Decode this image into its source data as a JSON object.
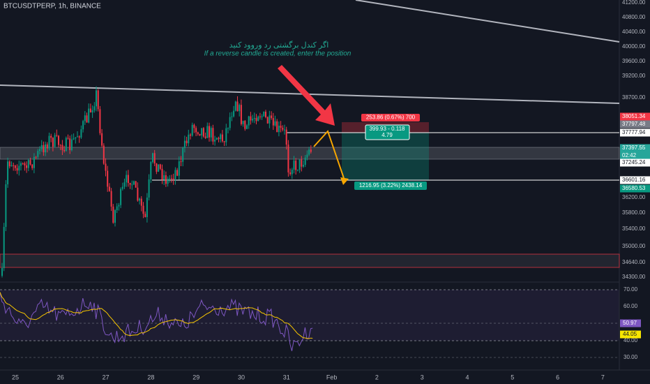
{
  "header": {
    "title": "BTCUSDTPERP, 1h, BINANCE"
  },
  "annotation": {
    "persian": "اگر کندل برگشتی رد وروود کنید",
    "english": "If a reverse candle is created, enter the position"
  },
  "position": {
    "stop": "253.86 (0.67%) 700",
    "middle_top": "399.93 - 0.118",
    "middle_bottom": "4.79",
    "target": "1216.95 (3.22%) 2438.14"
  },
  "price_axis": {
    "ticks": [
      "41200.00",
      "40800.00",
      "40400.00",
      "40000.00",
      "39600.00",
      "39200.00",
      "38700.00",
      "36200.00",
      "35800.00",
      "35400.00",
      "35000.00",
      "34640.00",
      "34300.00"
    ],
    "badges": {
      "stop": "38051.34",
      "grey": "37797.48",
      "entry": "37777.94",
      "last": "37397.55",
      "countdown": "02:42",
      "level": "37245.24",
      "target_line": "36601.16",
      "target": "36580.53"
    }
  },
  "rsi_axis": {
    "ticks": [
      "70.00",
      "60.00",
      "40.00",
      "30.00"
    ],
    "rsi": "50.97",
    "ma": "44.05"
  },
  "time_axis": [
    "25",
    "26",
    "27",
    "28",
    "29",
    "30",
    "31",
    "Feb",
    "2",
    "3",
    "4",
    "5",
    "6",
    "7"
  ]
}
